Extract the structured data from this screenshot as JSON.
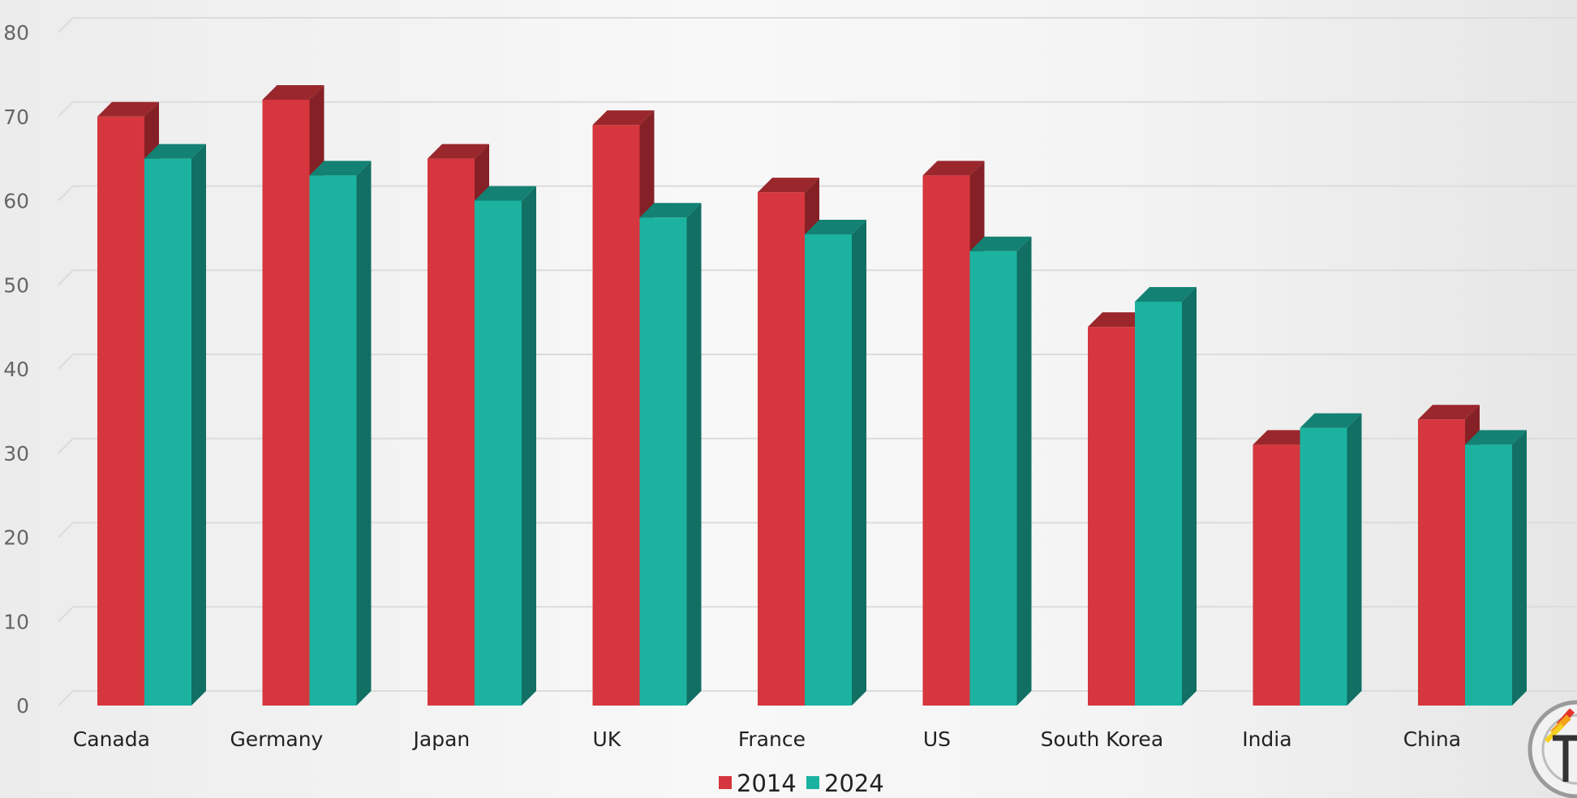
{
  "chart_data": {
    "type": "bar",
    "title": "",
    "xlabel": "",
    "ylabel": "",
    "categories": [
      "Canada",
      "Germany",
      "Japan",
      "UK",
      "France",
      "US",
      "South Korea",
      "India",
      "China"
    ],
    "series": [
      {
        "name": "2014",
        "color": "#d6363d",
        "values": [
          70,
          72,
          65,
          69,
          61,
          63,
          45,
          31,
          34
        ]
      },
      {
        "name": "2024",
        "color": "#1bb3a0",
        "values": [
          65,
          63,
          60,
          58,
          56,
          54,
          48,
          33,
          31
        ]
      }
    ],
    "ylim": [
      0,
      80
    ],
    "yticks": [
      0,
      10,
      20,
      30,
      40,
      50,
      60,
      70,
      80
    ],
    "grid": true,
    "legend_position": "bottom-center",
    "style": "3d-clustered-column"
  },
  "watermark": {
    "icon": "circular-logo-icon"
  }
}
